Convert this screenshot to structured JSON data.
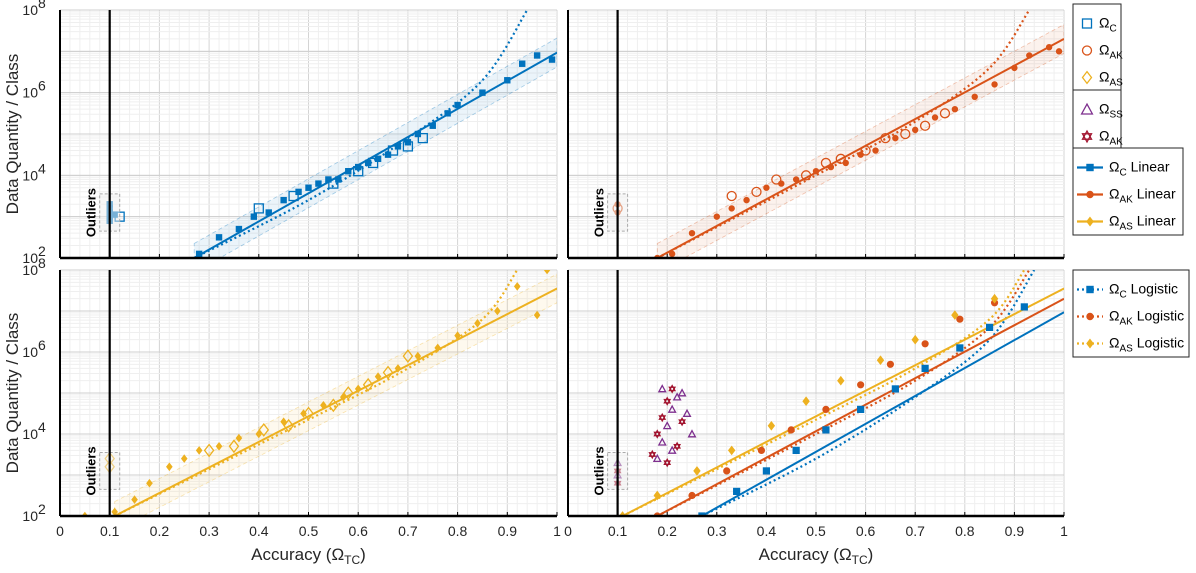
{
  "chart_data": {
    "type": "scatter",
    "title": "",
    "xlabel": "Accuracy (Ω_TC)",
    "ylabel": "Data Quantity / Class",
    "xlim": [
      0,
      1
    ],
    "ylim_log10": [
      2,
      8
    ],
    "x_ticks": [
      "0",
      "0.1",
      "0.2",
      "0.3",
      "0.4",
      "0.5",
      "0.6",
      "0.7",
      "0.8",
      "0.9",
      "1"
    ],
    "y_ticks": [
      {
        "base": "10",
        "exp": "2"
      },
      {
        "base": "10",
        "exp": "4"
      },
      {
        "base": "10",
        "exp": "6"
      },
      {
        "base": "10",
        "exp": "8"
      }
    ],
    "outlier_threshold_x": 0.1,
    "outlier_label": "Outliers",
    "colors": {
      "C": "#0072BD",
      "AK": "#D95319",
      "AS": "#EDB120",
      "SS": "#7E2F8E",
      "AK2": "#A2142F"
    },
    "fits": {
      "C": {
        "linear_log10": [
          [
            0.27,
            2.0
          ],
          [
            1.0,
            6.97
          ]
        ],
        "logistic_log10": [
          [
            0.27,
            2.0
          ],
          [
            0.5,
            3.4
          ],
          [
            0.7,
            4.9
          ],
          [
            0.85,
            6.3
          ],
          [
            0.94,
            8.0
          ]
        ]
      },
      "AK": {
        "linear_log10": [
          [
            0.18,
            2.0
          ],
          [
            1.0,
            7.3
          ]
        ],
        "logistic_log10": [
          [
            0.18,
            2.0
          ],
          [
            0.5,
            4.0
          ],
          [
            0.7,
            5.3
          ],
          [
            0.85,
            6.6
          ],
          [
            0.93,
            8.0
          ]
        ]
      },
      "AS": {
        "linear_log10": [
          [
            0.11,
            2.0
          ],
          [
            1.0,
            7.55
          ]
        ],
        "logistic_log10": [
          [
            0.11,
            2.0
          ],
          [
            0.5,
            4.35
          ],
          [
            0.7,
            5.6
          ],
          [
            0.85,
            6.8
          ],
          [
            0.92,
            8.0
          ]
        ]
      }
    },
    "panels": [
      {
        "name": "top-left",
        "series": [
          "C"
        ],
        "points": {
          "C": [
            [
              0.1,
              3.0
            ],
            [
              0.1,
              3.1
            ],
            [
              0.1,
              3.2
            ],
            [
              0.1,
              3.3
            ],
            [
              0.11,
              3.05
            ],
            [
              0.1,
              2.9
            ],
            [
              0.28,
              2.1
            ],
            [
              0.32,
              2.5
            ],
            [
              0.36,
              2.7
            ],
            [
              0.39,
              3.0
            ],
            [
              0.42,
              3.1
            ],
            [
              0.45,
              3.4
            ],
            [
              0.48,
              3.6
            ],
            [
              0.5,
              3.7
            ],
            [
              0.52,
              3.8
            ],
            [
              0.54,
              3.9
            ],
            [
              0.56,
              3.9
            ],
            [
              0.58,
              4.1
            ],
            [
              0.6,
              4.2
            ],
            [
              0.62,
              4.3
            ],
            [
              0.64,
              4.4
            ],
            [
              0.66,
              4.5
            ],
            [
              0.68,
              4.7
            ],
            [
              0.7,
              4.8
            ],
            [
              0.72,
              5.0
            ],
            [
              0.75,
              5.2
            ],
            [
              0.78,
              5.5
            ],
            [
              0.8,
              5.7
            ],
            [
              0.85,
              6.0
            ],
            [
              0.9,
              6.3
            ],
            [
              0.93,
              6.7
            ],
            [
              0.96,
              6.9
            ],
            [
              0.99,
              6.8
            ]
          ],
          "C_open": [
            [
              0.4,
              3.2
            ],
            [
              0.47,
              3.5
            ],
            [
              0.55,
              3.8
            ],
            [
              0.6,
              4.1
            ],
            [
              0.63,
              4.3
            ],
            [
              0.67,
              4.6
            ],
            [
              0.7,
              4.7
            ],
            [
              0.73,
              4.9
            ],
            [
              0.12,
              3.0
            ]
          ]
        }
      },
      {
        "name": "top-right",
        "series": [
          "AK"
        ],
        "points": {
          "AK": [
            [
              0.1,
              3.1
            ],
            [
              0.1,
              3.3
            ],
            [
              0.18,
              2.0
            ],
            [
              0.21,
              2.1
            ],
            [
              0.25,
              2.6
            ],
            [
              0.3,
              3.0
            ],
            [
              0.33,
              3.2
            ],
            [
              0.36,
              3.4
            ],
            [
              0.4,
              3.7
            ],
            [
              0.43,
              3.8
            ],
            [
              0.46,
              3.9
            ],
            [
              0.5,
              4.1
            ],
            [
              0.53,
              4.2
            ],
            [
              0.56,
              4.3
            ],
            [
              0.59,
              4.5
            ],
            [
              0.62,
              4.6
            ],
            [
              0.66,
              4.9
            ],
            [
              0.7,
              5.1
            ],
            [
              0.74,
              5.4
            ],
            [
              0.78,
              5.6
            ],
            [
              0.82,
              5.9
            ],
            [
              0.86,
              6.2
            ],
            [
              0.9,
              6.6
            ],
            [
              0.93,
              6.9
            ],
            [
              0.97,
              7.1
            ],
            [
              0.99,
              7.0
            ]
          ],
          "AK_open": [
            [
              0.1,
              3.2
            ],
            [
              0.33,
              3.5
            ],
            [
              0.38,
              3.6
            ],
            [
              0.42,
              3.9
            ],
            [
              0.48,
              4.0
            ],
            [
              0.52,
              4.3
            ],
            [
              0.55,
              4.4
            ],
            [
              0.6,
              4.6
            ],
            [
              0.64,
              4.9
            ],
            [
              0.68,
              5.0
            ],
            [
              0.72,
              5.2
            ],
            [
              0.76,
              5.5
            ]
          ]
        }
      },
      {
        "name": "bottom-left",
        "series": [
          "AS"
        ],
        "points": {
          "AS": [
            [
              0.05,
              2.0
            ],
            [
              0.11,
              2.1
            ],
            [
              0.15,
              2.4
            ],
            [
              0.18,
              2.8
            ],
            [
              0.22,
              3.2
            ],
            [
              0.25,
              3.4
            ],
            [
              0.28,
              3.6
            ],
            [
              0.32,
              3.7
            ],
            [
              0.36,
              3.9
            ],
            [
              0.4,
              4.0
            ],
            [
              0.45,
              4.3
            ],
            [
              0.49,
              4.5
            ],
            [
              0.53,
              4.7
            ],
            [
              0.57,
              4.9
            ],
            [
              0.6,
              5.1
            ],
            [
              0.64,
              5.4
            ],
            [
              0.68,
              5.6
            ],
            [
              0.72,
              5.9
            ],
            [
              0.76,
              6.1
            ],
            [
              0.8,
              6.4
            ],
            [
              0.84,
              6.7
            ],
            [
              0.88,
              7.0
            ],
            [
              0.92,
              7.6
            ],
            [
              0.96,
              6.9
            ],
            [
              0.98,
              8.0
            ]
          ],
          "AS_open": [
            [
              0.1,
              3.2
            ],
            [
              0.1,
              3.4
            ],
            [
              0.3,
              3.6
            ],
            [
              0.35,
              3.7
            ],
            [
              0.41,
              4.1
            ],
            [
              0.46,
              4.2
            ],
            [
              0.5,
              4.5
            ],
            [
              0.55,
              4.7
            ],
            [
              0.58,
              5.0
            ],
            [
              0.62,
              5.2
            ],
            [
              0.66,
              5.5
            ],
            [
              0.7,
              5.9
            ]
          ]
        }
      },
      {
        "name": "bottom-right",
        "series": [
          "C",
          "AK",
          "AS",
          "SS",
          "AK2"
        ],
        "points": {
          "SS": [
            [
              0.18,
              3.4
            ],
            [
              0.19,
              3.8
            ],
            [
              0.2,
              4.2
            ],
            [
              0.21,
              4.6
            ],
            [
              0.22,
              4.9
            ],
            [
              0.23,
              5.0
            ],
            [
              0.24,
              4.5
            ],
            [
              0.25,
              4.0
            ],
            [
              0.19,
              5.1
            ],
            [
              0.21,
              3.6
            ],
            [
              0.1,
              3.0
            ],
            [
              0.1,
              3.3
            ]
          ],
          "AK2": [
            [
              0.17,
              3.5
            ],
            [
              0.18,
              4.0
            ],
            [
              0.19,
              4.4
            ],
            [
              0.2,
              4.8
            ],
            [
              0.21,
              5.1
            ],
            [
              0.22,
              3.7
            ],
            [
              0.23,
              4.3
            ],
            [
              0.2,
              3.3
            ],
            [
              0.1,
              2.8
            ],
            [
              0.1,
              3.1
            ]
          ],
          "C_fit_marks": [
            [
              0.27,
              2.0
            ],
            [
              0.34,
              2.6
            ],
            [
              0.4,
              3.1
            ],
            [
              0.46,
              3.6
            ],
            [
              0.52,
              4.1
            ],
            [
              0.59,
              4.6
            ],
            [
              0.66,
              5.1
            ],
            [
              0.72,
              5.6
            ],
            [
              0.79,
              6.1
            ],
            [
              0.85,
              6.6
            ],
            [
              0.92,
              7.1
            ]
          ],
          "AK_fit_marks": [
            [
              0.18,
              2.0
            ],
            [
              0.25,
              2.5
            ],
            [
              0.32,
              3.1
            ],
            [
              0.39,
              3.6
            ],
            [
              0.45,
              4.1
            ],
            [
              0.52,
              4.6
            ],
            [
              0.59,
              5.2
            ],
            [
              0.65,
              5.7
            ],
            [
              0.72,
              6.2
            ],
            [
              0.79,
              6.8
            ],
            [
              0.86,
              7.2
            ]
          ],
          "AS_fit_marks": [
            [
              0.11,
              2.0
            ],
            [
              0.18,
              2.5
            ],
            [
              0.26,
              3.1
            ],
            [
              0.33,
              3.6
            ],
            [
              0.41,
              4.2
            ],
            [
              0.48,
              4.8
            ],
            [
              0.55,
              5.3
            ],
            [
              0.63,
              5.8
            ],
            [
              0.7,
              6.3
            ],
            [
              0.78,
              6.9
            ],
            [
              0.86,
              7.3
            ]
          ]
        }
      }
    ],
    "legend": {
      "group1": [
        {
          "key": "C",
          "marker": "open-square",
          "label_base": "Ω",
          "label_sub": "C",
          "label_tail": ""
        },
        {
          "key": "AK",
          "marker": "open-circle",
          "label_base": "Ω",
          "label_sub": "AK",
          "label_tail": ""
        },
        {
          "key": "AS",
          "marker": "open-diamond",
          "label_base": "Ω",
          "label_sub": "AS",
          "label_tail": ""
        }
      ],
      "group2": [
        {
          "key": "SS",
          "marker": "open-triangle",
          "label_base": "Ω",
          "label_sub": "SS",
          "label_tail": ""
        },
        {
          "key": "AK2",
          "marker": "open-hexagram",
          "label_base": "Ω",
          "label_sub": "AK",
          "label_tail": ""
        }
      ],
      "group3": [
        {
          "key": "C",
          "marker": "square-line",
          "label_base": "Ω",
          "label_sub": "C",
          "label_tail": " Linear"
        },
        {
          "key": "AK",
          "marker": "circle-line",
          "label_base": "Ω",
          "label_sub": "AK",
          "label_tail": " Linear"
        },
        {
          "key": "AS",
          "marker": "diamond-line",
          "label_base": "Ω",
          "label_sub": "AS",
          "label_tail": " Linear"
        }
      ],
      "group4": [
        {
          "key": "C",
          "marker": "square-dotted",
          "label_base": "Ω",
          "label_sub": "C",
          "label_tail": " Logistic"
        },
        {
          "key": "AK",
          "marker": "circle-dotted",
          "label_base": "Ω",
          "label_sub": "AK",
          "label_tail": " Logistic"
        },
        {
          "key": "AS",
          "marker": "diamond-dotted",
          "label_base": "Ω",
          "label_sub": "AS",
          "label_tail": " Logistic"
        }
      ]
    }
  }
}
